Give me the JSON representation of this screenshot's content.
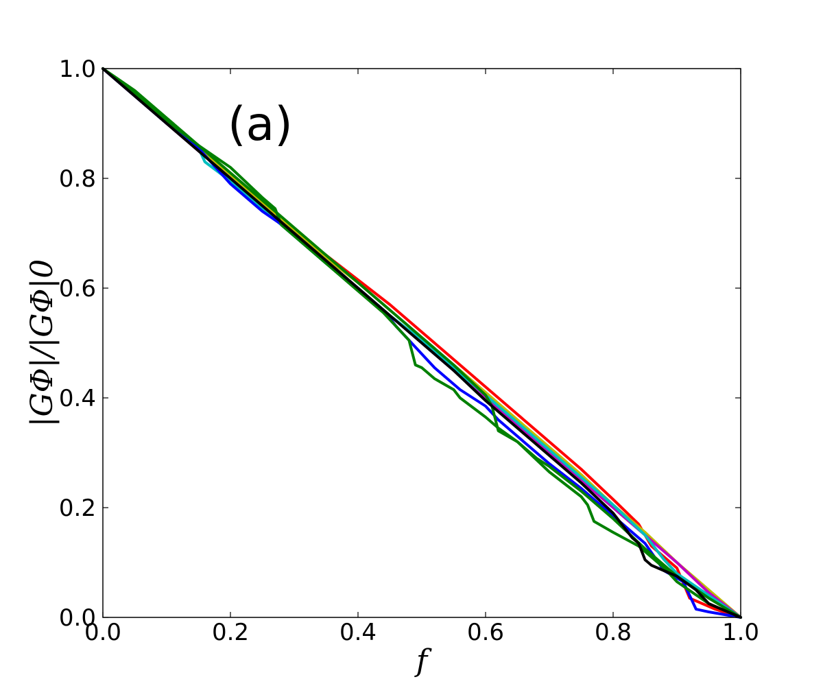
{
  "chart_data": {
    "type": "line",
    "panel_label": "(a)",
    "xlabel": "f",
    "ylabel": "|GΦ|/|GΦ|0",
    "xlim": [
      0,
      1
    ],
    "ylim": [
      0,
      1
    ],
    "xticks": [
      0.0,
      0.2,
      0.4,
      0.6,
      0.8,
      1.0
    ],
    "yticks": [
      0.0,
      0.2,
      0.4,
      0.6,
      0.8,
      1.0
    ],
    "xtick_labels": [
      "0.0",
      "0.2",
      "0.4",
      "0.6",
      "0.8",
      "1.0"
    ],
    "ytick_labels": [
      "0.0",
      "0.2",
      "0.4",
      "0.6",
      "0.8",
      "1.0"
    ],
    "grid": false,
    "legend": "none",
    "series": [
      {
        "color": "#ff0000",
        "x": [
          0,
          0.05,
          0.1,
          0.15,
          0.2,
          0.25,
          0.3,
          0.35,
          0.4,
          0.45,
          0.5,
          0.55,
          0.6,
          0.65,
          0.7,
          0.75,
          0.8,
          0.84,
          0.86,
          0.9,
          0.92,
          0.93,
          0.96,
          1.0
        ],
        "y": [
          1.0,
          0.955,
          0.9,
          0.855,
          0.805,
          0.76,
          0.705,
          0.66,
          0.615,
          0.57,
          0.52,
          0.47,
          0.42,
          0.37,
          0.32,
          0.27,
          0.215,
          0.17,
          0.13,
          0.09,
          0.035,
          0.03,
          0.015,
          0.0
        ]
      },
      {
        "color": "#bfbf00",
        "x": [
          0,
          0.05,
          0.1,
          0.15,
          0.2,
          0.25,
          0.3,
          0.35,
          0.4,
          0.45,
          0.5,
          0.55,
          0.6,
          0.65,
          0.7,
          0.75,
          0.8,
          0.85,
          0.9,
          0.95,
          1.0
        ],
        "y": [
          1.0,
          0.955,
          0.905,
          0.855,
          0.805,
          0.755,
          0.705,
          0.655,
          0.61,
          0.56,
          0.51,
          0.46,
          0.41,
          0.36,
          0.31,
          0.26,
          0.205,
          0.155,
          0.1,
          0.05,
          0.0
        ]
      },
      {
        "color": "#bf00bf",
        "x": [
          0,
          0.05,
          0.1,
          0.15,
          0.2,
          0.25,
          0.3,
          0.35,
          0.4,
          0.45,
          0.5,
          0.55,
          0.6,
          0.65,
          0.7,
          0.75,
          0.8,
          0.85,
          0.9,
          0.95,
          1.0
        ],
        "y": [
          1.0,
          0.95,
          0.9,
          0.85,
          0.8,
          0.75,
          0.7,
          0.65,
          0.6,
          0.55,
          0.5,
          0.45,
          0.4,
          0.35,
          0.3,
          0.25,
          0.2,
          0.15,
          0.1,
          0.045,
          0.0
        ]
      },
      {
        "color": "#00bfbf",
        "x": [
          0,
          0.05,
          0.1,
          0.15,
          0.16,
          0.2,
          0.25,
          0.3,
          0.35,
          0.4,
          0.45,
          0.5,
          0.55,
          0.6,
          0.65,
          0.7,
          0.75,
          0.8,
          0.85,
          0.88,
          0.9,
          0.95,
          1.0
        ],
        "y": [
          1.0,
          0.955,
          0.905,
          0.855,
          0.83,
          0.795,
          0.745,
          0.695,
          0.645,
          0.6,
          0.55,
          0.505,
          0.455,
          0.405,
          0.355,
          0.305,
          0.255,
          0.205,
          0.15,
          0.105,
          0.08,
          0.04,
          0.0
        ]
      },
      {
        "color": "#0000ff",
        "x": [
          0,
          0.05,
          0.1,
          0.15,
          0.2,
          0.25,
          0.3,
          0.35,
          0.4,
          0.44,
          0.46,
          0.5,
          0.52,
          0.56,
          0.6,
          0.62,
          0.65,
          0.7,
          0.75,
          0.8,
          0.85,
          0.88,
          0.91,
          0.93,
          0.95,
          1.0
        ],
        "y": [
          1.0,
          0.95,
          0.9,
          0.855,
          0.79,
          0.74,
          0.7,
          0.65,
          0.6,
          0.56,
          0.53,
          0.48,
          0.455,
          0.415,
          0.385,
          0.36,
          0.33,
          0.28,
          0.235,
          0.185,
          0.135,
          0.085,
          0.065,
          0.015,
          0.01,
          0.0
        ]
      },
      {
        "color": "#008000",
        "x": [
          0,
          0.05,
          0.1,
          0.15,
          0.2,
          0.25,
          0.27,
          0.28,
          0.32,
          0.38,
          0.44,
          0.48,
          0.49,
          0.5,
          0.52,
          0.55,
          0.56,
          0.6,
          0.62,
          0.65,
          0.7,
          0.75,
          0.76,
          0.77,
          0.8,
          0.84,
          0.88,
          0.9,
          0.95,
          1.0
        ],
        "y": [
          1.0,
          0.96,
          0.91,
          0.86,
          0.82,
          0.765,
          0.745,
          0.715,
          0.675,
          0.615,
          0.555,
          0.505,
          0.46,
          0.455,
          0.435,
          0.415,
          0.4,
          0.365,
          0.345,
          0.32,
          0.265,
          0.22,
          0.205,
          0.175,
          0.155,
          0.13,
          0.09,
          0.065,
          0.025,
          0.0
        ]
      },
      {
        "color": "#008000",
        "x": [
          0,
          0.05,
          0.1,
          0.15,
          0.2,
          0.25,
          0.3,
          0.35,
          0.4,
          0.45,
          0.5,
          0.55,
          0.6,
          0.61,
          0.62,
          0.65,
          0.67,
          0.68,
          0.7,
          0.75,
          0.8,
          0.85,
          0.9,
          0.95,
          1.0
        ],
        "y": [
          1.0,
          0.955,
          0.905,
          0.86,
          0.81,
          0.76,
          0.71,
          0.66,
          0.61,
          0.56,
          0.51,
          0.46,
          0.405,
          0.385,
          0.34,
          0.32,
          0.3,
          0.29,
          0.275,
          0.23,
          0.18,
          0.125,
          0.075,
          0.035,
          0.0
        ]
      },
      {
        "color": "#000000",
        "x": [
          0,
          0.05,
          0.1,
          0.15,
          0.2,
          0.25,
          0.3,
          0.35,
          0.4,
          0.45,
          0.5,
          0.55,
          0.6,
          0.65,
          0.7,
          0.75,
          0.8,
          0.83,
          0.84,
          0.85,
          0.86,
          0.9,
          0.93,
          0.95,
          1.0
        ],
        "y": [
          1.0,
          0.95,
          0.9,
          0.85,
          0.8,
          0.75,
          0.7,
          0.65,
          0.6,
          0.55,
          0.5,
          0.45,
          0.395,
          0.345,
          0.295,
          0.245,
          0.19,
          0.145,
          0.135,
          0.105,
          0.095,
          0.075,
          0.05,
          0.025,
          0.0
        ]
      }
    ]
  }
}
